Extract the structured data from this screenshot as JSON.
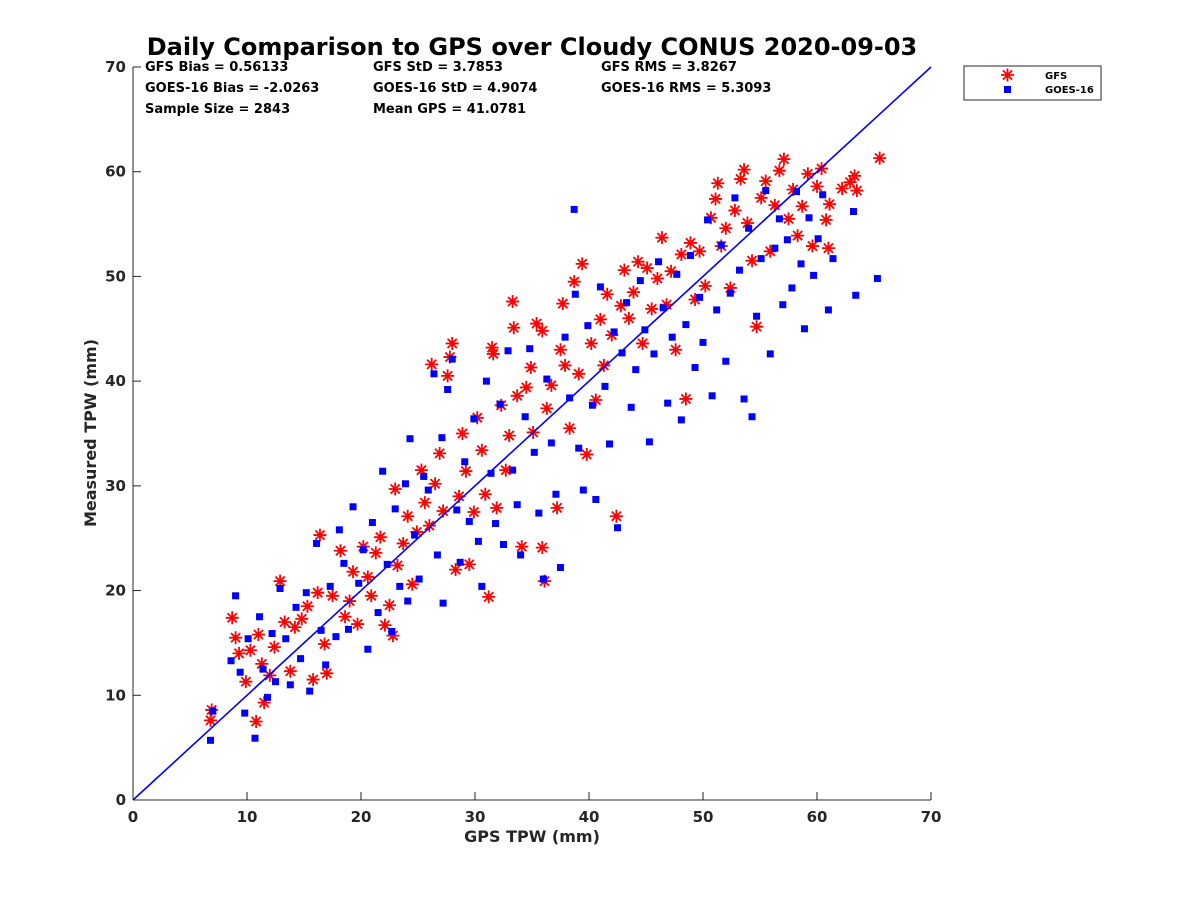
{
  "chart_data": {
    "type": "scatter",
    "title": "Daily Comparison to GPS over Cloudy CONUS 2020-09-03",
    "xlabel": "GPS TPW (mm)",
    "ylabel": "Measured TPW (mm)",
    "xlim": [
      0,
      70
    ],
    "ylim": [
      0,
      70
    ],
    "xticks": [
      "0",
      "10",
      "20",
      "30",
      "40",
      "50",
      "60",
      "70"
    ],
    "yticks": [
      "0",
      "10",
      "20",
      "30",
      "40",
      "50",
      "60",
      "70"
    ],
    "grid": false,
    "legend_position": "outside-top-right",
    "stats": [
      "GFS Bias = 0.56133",
      "GFS StD = 3.7853",
      "GFS RMS = 3.8267",
      "GOES-16 Bias = -2.0263",
      "GOES-16 StD = 4.9074",
      "GOES-16 RMS = 5.3093",
      "Sample Size = 2843",
      "Mean GPS = 41.0781"
    ],
    "reference_line": {
      "name": "1:1",
      "x": [
        0,
        70
      ],
      "y": [
        0,
        70
      ],
      "color": "#0000ff"
    },
    "series": [
      {
        "name": "GFS",
        "marker": "asterisk",
        "color": "#ff0000",
        "points": [
          [
            6.9,
            8.6
          ],
          [
            6.8,
            7.6
          ],
          [
            8.7,
            17.4
          ],
          [
            9.0,
            15.5
          ],
          [
            9.3,
            14.0
          ],
          [
            9.9,
            11.3
          ],
          [
            10.3,
            14.3
          ],
          [
            10.8,
            7.5
          ],
          [
            11.0,
            15.8
          ],
          [
            11.3,
            13.0
          ],
          [
            11.5,
            9.3
          ],
          [
            12.0,
            11.9
          ],
          [
            12.4,
            14.6
          ],
          [
            12.9,
            20.9
          ],
          [
            13.3,
            17.0
          ],
          [
            13.8,
            12.3
          ],
          [
            14.2,
            16.5
          ],
          [
            14.8,
            17.3
          ],
          [
            15.3,
            18.5
          ],
          [
            15.8,
            11.5
          ],
          [
            16.2,
            19.8
          ],
          [
            16.4,
            25.3
          ],
          [
            16.8,
            14.9
          ],
          [
            17.0,
            12.1
          ],
          [
            17.5,
            19.5
          ],
          [
            18.2,
            23.8
          ],
          [
            18.6,
            17.5
          ],
          [
            19.0,
            19.0
          ],
          [
            19.3,
            21.8
          ],
          [
            19.7,
            16.8
          ],
          [
            20.2,
            24.2
          ],
          [
            20.6,
            21.3
          ],
          [
            20.9,
            19.5
          ],
          [
            21.3,
            23.6
          ],
          [
            21.7,
            25.1
          ],
          [
            22.1,
            16.7
          ],
          [
            22.5,
            18.6
          ],
          [
            22.8,
            15.7
          ],
          [
            23.2,
            22.4
          ],
          [
            23.0,
            29.7
          ],
          [
            23.7,
            24.5
          ],
          [
            24.1,
            27.1
          ],
          [
            24.5,
            20.6
          ],
          [
            24.9,
            25.6
          ],
          [
            25.3,
            31.5
          ],
          [
            25.6,
            28.4
          ],
          [
            26.0,
            26.2
          ],
          [
            26.2,
            41.6
          ],
          [
            26.5,
            30.2
          ],
          [
            26.9,
            33.1
          ],
          [
            27.2,
            27.6
          ],
          [
            27.6,
            40.5
          ],
          [
            27.8,
            42.3
          ],
          [
            28.0,
            43.6
          ],
          [
            28.3,
            22.0
          ],
          [
            28.6,
            29.0
          ],
          [
            28.9,
            35.0
          ],
          [
            29.2,
            31.4
          ],
          [
            29.5,
            22.5
          ],
          [
            29.9,
            27.5
          ],
          [
            30.2,
            36.5
          ],
          [
            30.6,
            33.4
          ],
          [
            30.9,
            29.2
          ],
          [
            31.2,
            19.4
          ],
          [
            31.5,
            43.2
          ],
          [
            31.6,
            42.6
          ],
          [
            31.9,
            27.9
          ],
          [
            32.3,
            37.7
          ],
          [
            32.7,
            31.5
          ],
          [
            33.0,
            34.8
          ],
          [
            33.3,
            47.6
          ],
          [
            33.4,
            45.1
          ],
          [
            33.7,
            38.6
          ],
          [
            34.1,
            24.2
          ],
          [
            34.5,
            39.4
          ],
          [
            34.9,
            41.3
          ],
          [
            35.1,
            35.1
          ],
          [
            35.4,
            45.5
          ],
          [
            35.9,
            44.8
          ],
          [
            35.9,
            24.1
          ],
          [
            36.1,
            20.9
          ],
          [
            36.3,
            37.4
          ],
          [
            36.7,
            39.6
          ],
          [
            37.2,
            27.9
          ],
          [
            37.5,
            43.0
          ],
          [
            37.7,
            47.4
          ],
          [
            37.9,
            41.5
          ],
          [
            38.3,
            35.5
          ],
          [
            38.7,
            49.5
          ],
          [
            39.1,
            40.7
          ],
          [
            39.4,
            51.2
          ],
          [
            39.8,
            33.0
          ],
          [
            40.2,
            43.6
          ],
          [
            40.6,
            38.2
          ],
          [
            41.0,
            45.9
          ],
          [
            41.3,
            41.5
          ],
          [
            41.6,
            48.3
          ],
          [
            42.0,
            44.4
          ],
          [
            42.4,
            27.1
          ],
          [
            42.8,
            47.2
          ],
          [
            43.1,
            50.6
          ],
          [
            43.5,
            46.0
          ],
          [
            43.9,
            48.5
          ],
          [
            44.3,
            51.4
          ],
          [
            44.7,
            43.6
          ],
          [
            45.1,
            50.8
          ],
          [
            45.5,
            46.9
          ],
          [
            46.0,
            49.8
          ],
          [
            46.4,
            53.7
          ],
          [
            46.8,
            47.3
          ],
          [
            47.2,
            50.5
          ],
          [
            47.6,
            43.0
          ],
          [
            48.1,
            52.1
          ],
          [
            48.5,
            38.3
          ],
          [
            48.9,
            53.2
          ],
          [
            49.3,
            47.8
          ],
          [
            49.7,
            52.4
          ],
          [
            50.2,
            49.1
          ],
          [
            50.7,
            55.6
          ],
          [
            51.1,
            57.4
          ],
          [
            51.3,
            58.9
          ],
          [
            51.6,
            52.9
          ],
          [
            52.0,
            54.6
          ],
          [
            52.4,
            48.9
          ],
          [
            52.8,
            56.3
          ],
          [
            53.3,
            59.3
          ],
          [
            53.6,
            60.2
          ],
          [
            53.9,
            55.1
          ],
          [
            54.3,
            51.5
          ],
          [
            54.7,
            45.2
          ],
          [
            55.1,
            57.5
          ],
          [
            55.5,
            59.1
          ],
          [
            55.9,
            52.4
          ],
          [
            56.3,
            56.8
          ],
          [
            56.7,
            60.1
          ],
          [
            57.1,
            61.2
          ],
          [
            57.5,
            55.5
          ],
          [
            57.9,
            58.3
          ],
          [
            58.3,
            53.9
          ],
          [
            58.7,
            56.7
          ],
          [
            59.2,
            59.8
          ],
          [
            59.6,
            52.9
          ],
          [
            60.0,
            58.6
          ],
          [
            60.4,
            60.3
          ],
          [
            60.8,
            55.4
          ],
          [
            61.1,
            56.9
          ],
          [
            61.0,
            52.7
          ],
          [
            62.2,
            58.4
          ],
          [
            62.9,
            59.0
          ],
          [
            63.3,
            59.6
          ],
          [
            63.5,
            58.2
          ],
          [
            65.5,
            61.3
          ]
        ]
      },
      {
        "name": "GOES-16",
        "marker": "square",
        "color": "#0000ff",
        "points": [
          [
            6.8,
            5.7
          ],
          [
            7.0,
            8.5
          ],
          [
            8.6,
            13.3
          ],
          [
            9.0,
            19.5
          ],
          [
            9.4,
            12.2
          ],
          [
            9.8,
            8.3
          ],
          [
            10.1,
            15.4
          ],
          [
            10.7,
            5.9
          ],
          [
            11.1,
            17.5
          ],
          [
            11.4,
            12.5
          ],
          [
            11.8,
            9.8
          ],
          [
            12.2,
            15.9
          ],
          [
            12.5,
            11.3
          ],
          [
            12.9,
            20.2
          ],
          [
            13.4,
            15.4
          ],
          [
            13.8,
            11.0
          ],
          [
            14.3,
            18.4
          ],
          [
            14.7,
            13.5
          ],
          [
            15.2,
            19.8
          ],
          [
            15.5,
            10.4
          ],
          [
            16.1,
            24.5
          ],
          [
            16.5,
            16.2
          ],
          [
            16.9,
            12.9
          ],
          [
            17.3,
            20.4
          ],
          [
            17.8,
            15.6
          ],
          [
            18.1,
            25.8
          ],
          [
            18.5,
            22.6
          ],
          [
            18.9,
            16.3
          ],
          [
            19.3,
            28.0
          ],
          [
            19.8,
            20.7
          ],
          [
            20.2,
            23.9
          ],
          [
            20.6,
            14.4
          ],
          [
            21.0,
            26.5
          ],
          [
            21.5,
            17.9
          ],
          [
            21.9,
            31.4
          ],
          [
            22.3,
            22.5
          ],
          [
            22.7,
            16.1
          ],
          [
            23.0,
            27.8
          ],
          [
            23.4,
            20.4
          ],
          [
            23.9,
            30.2
          ],
          [
            24.1,
            19.0
          ],
          [
            24.3,
            34.5
          ],
          [
            24.7,
            25.3
          ],
          [
            25.1,
            21.1
          ],
          [
            25.5,
            30.9
          ],
          [
            25.9,
            29.6
          ],
          [
            26.4,
            40.7
          ],
          [
            26.7,
            23.4
          ],
          [
            27.1,
            34.6
          ],
          [
            27.2,
            18.8
          ],
          [
            27.6,
            39.2
          ],
          [
            28.0,
            42.1
          ],
          [
            28.4,
            27.7
          ],
          [
            28.7,
            22.7
          ],
          [
            29.1,
            32.3
          ],
          [
            29.5,
            26.6
          ],
          [
            29.9,
            36.4
          ],
          [
            30.3,
            24.7
          ],
          [
            30.6,
            20.4
          ],
          [
            31.0,
            40.0
          ],
          [
            31.4,
            31.2
          ],
          [
            31.8,
            26.4
          ],
          [
            32.2,
            37.8
          ],
          [
            32.5,
            24.4
          ],
          [
            32.9,
            42.9
          ],
          [
            33.3,
            31.5
          ],
          [
            33.7,
            28.2
          ],
          [
            34.0,
            23.4
          ],
          [
            34.4,
            36.6
          ],
          [
            34.8,
            43.1
          ],
          [
            35.2,
            33.2
          ],
          [
            35.6,
            27.4
          ],
          [
            36.0,
            21.1
          ],
          [
            36.3,
            40.2
          ],
          [
            36.7,
            34.1
          ],
          [
            37.1,
            29.2
          ],
          [
            37.5,
            22.2
          ],
          [
            37.9,
            44.2
          ],
          [
            38.3,
            38.4
          ],
          [
            38.7,
            56.4
          ],
          [
            38.8,
            48.3
          ],
          [
            39.1,
            33.6
          ],
          [
            39.5,
            29.6
          ],
          [
            39.9,
            45.3
          ],
          [
            40.3,
            37.7
          ],
          [
            40.6,
            28.7
          ],
          [
            41.0,
            49.0
          ],
          [
            41.4,
            39.5
          ],
          [
            41.8,
            34.0
          ],
          [
            42.2,
            44.7
          ],
          [
            42.5,
            26.0
          ],
          [
            42.9,
            42.7
          ],
          [
            43.3,
            47.5
          ],
          [
            43.7,
            37.5
          ],
          [
            44.1,
            41.1
          ],
          [
            44.5,
            49.6
          ],
          [
            44.9,
            44.9
          ],
          [
            45.3,
            34.2
          ],
          [
            45.7,
            42.6
          ],
          [
            46.1,
            51.4
          ],
          [
            46.5,
            47.0
          ],
          [
            46.9,
            37.9
          ],
          [
            47.3,
            44.2
          ],
          [
            47.7,
            50.2
          ],
          [
            48.1,
            36.3
          ],
          [
            48.5,
            45.4
          ],
          [
            48.9,
            52.0
          ],
          [
            49.3,
            41.3
          ],
          [
            49.7,
            48.0
          ],
          [
            50.0,
            43.7
          ],
          [
            50.4,
            55.4
          ],
          [
            50.8,
            38.6
          ],
          [
            51.2,
            46.8
          ],
          [
            51.6,
            53.0
          ],
          [
            52.0,
            41.9
          ],
          [
            52.4,
            48.4
          ],
          [
            52.8,
            57.5
          ],
          [
            53.2,
            50.6
          ],
          [
            53.6,
            38.3
          ],
          [
            54.0,
            54.6
          ],
          [
            54.3,
            36.6
          ],
          [
            54.7,
            46.2
          ],
          [
            55.1,
            51.7
          ],
          [
            55.5,
            58.2
          ],
          [
            55.9,
            42.6
          ],
          [
            56.3,
            52.7
          ],
          [
            56.7,
            55.5
          ],
          [
            57.0,
            47.3
          ],
          [
            57.4,
            53.5
          ],
          [
            57.8,
            48.9
          ],
          [
            58.2,
            58.1
          ],
          [
            58.6,
            51.2
          ],
          [
            58.9,
            45.0
          ],
          [
            59.3,
            55.6
          ],
          [
            59.7,
            50.1
          ],
          [
            60.1,
            53.6
          ],
          [
            60.5,
            57.8
          ],
          [
            61.0,
            46.8
          ],
          [
            61.4,
            51.7
          ],
          [
            63.2,
            56.2
          ],
          [
            63.4,
            48.2
          ],
          [
            65.3,
            49.8
          ]
        ]
      }
    ]
  }
}
